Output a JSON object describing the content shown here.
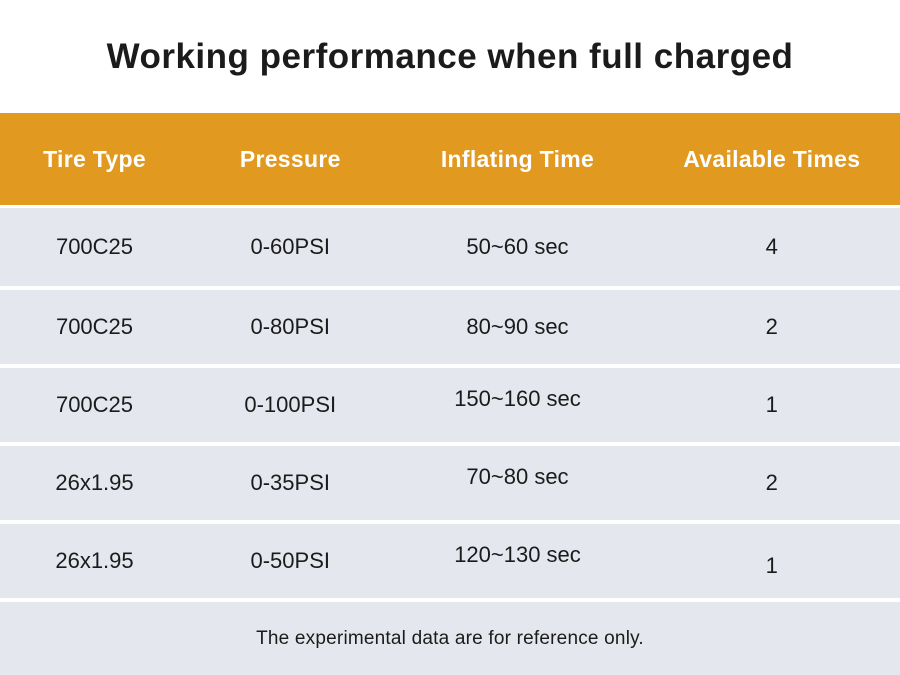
{
  "title": "Working performance when full charged",
  "chart_data": {
    "type": "table",
    "title": "Working performance when full charged",
    "columns": [
      "Tire Type",
      "Pressure",
      "Inflating Time",
      "Available Times"
    ],
    "rows": [
      [
        "700C25",
        "0-60PSI",
        "50~60 sec",
        "4"
      ],
      [
        "700C25",
        "0-80PSI",
        "80~90 sec",
        "2"
      ],
      [
        "700C25",
        "0-100PSI",
        "150~160 sec",
        "1"
      ],
      [
        "26x1.95",
        "0-35PSI",
        "70~80 sec",
        "2"
      ],
      [
        "26x1.95",
        "0-50PSI",
        "120~130 sec",
        "1"
      ]
    ],
    "footnote": "The experimental data are for reference only.",
    "layout": {
      "header_position": "top",
      "grid": "horizontal-white-separators",
      "alignment": "center"
    }
  },
  "colors": {
    "header_bg": "#E2991F",
    "header_text": "#FFFFFF",
    "row_bg": "#E4E7EE",
    "body_text": "#1B1B1B",
    "page_bg": "#FFFFFF"
  }
}
